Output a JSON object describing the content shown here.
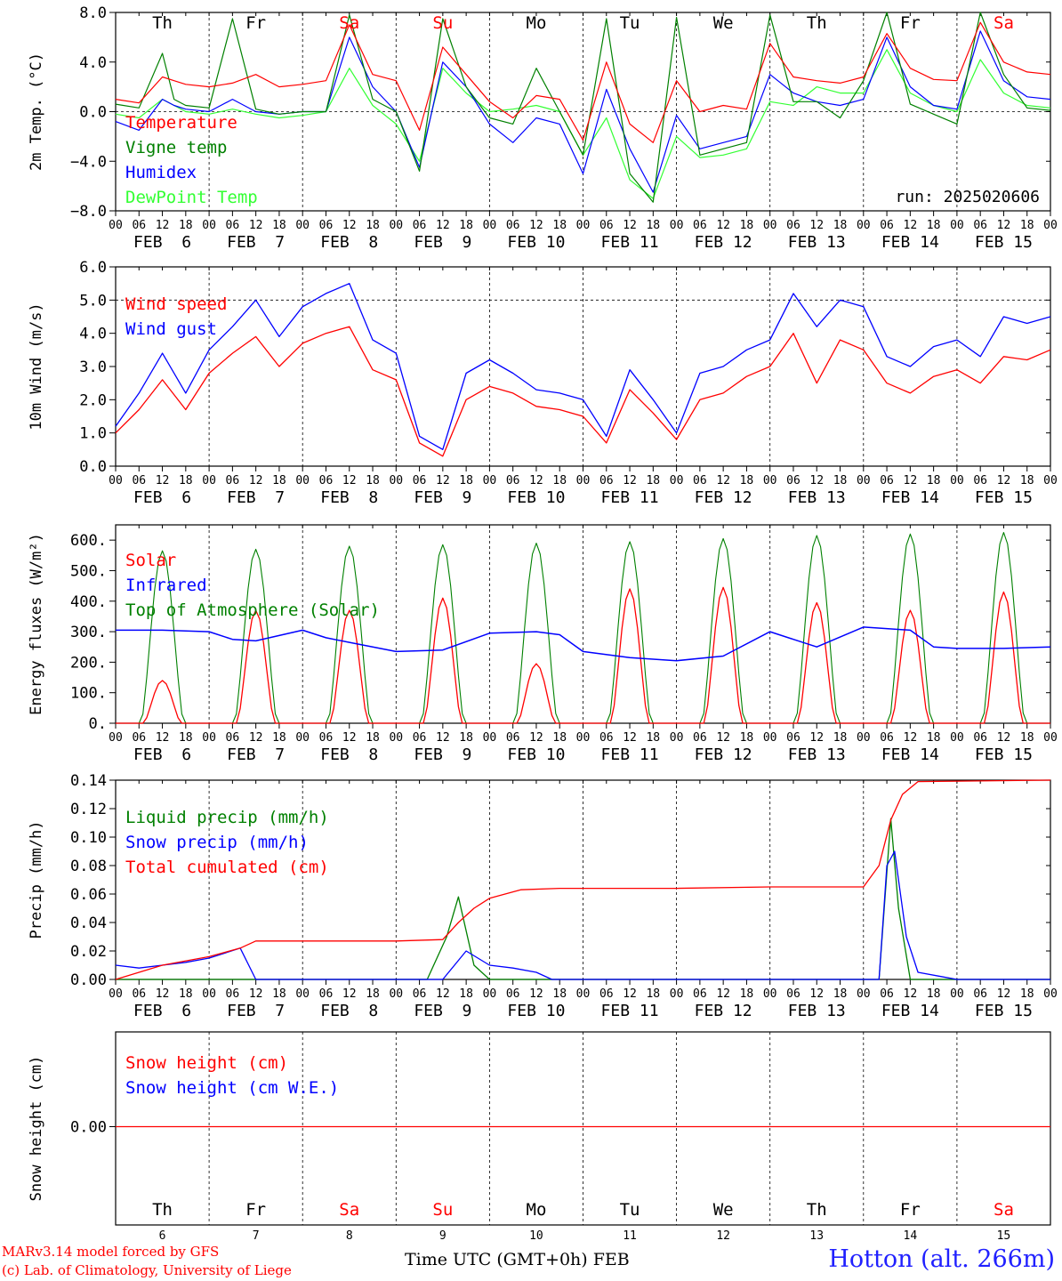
{
  "chart_data": [
    {
      "type": "line",
      "ylabel": "2m Temp. (°C)",
      "ylim": [
        -8,
        8
      ],
      "yticks": [
        "8.0",
        "4.0",
        "0.0",
        "−4.0",
        "−8.0"
      ],
      "reference_line": 0,
      "day_labels": [
        {
          "text": "Th",
          "color": "#000000"
        },
        {
          "text": "Fr",
          "color": "#000000"
        },
        {
          "text": "Sa",
          "color": "#ff0000"
        },
        {
          "text": "Su",
          "color": "#ff0000"
        },
        {
          "text": "Mo",
          "color": "#000000"
        },
        {
          "text": "Tu",
          "color": "#000000"
        },
        {
          "text": "We",
          "color": "#000000"
        },
        {
          "text": "Th",
          "color": "#000000"
        },
        {
          "text": "Fr",
          "color": "#000000"
        },
        {
          "text": "Sa",
          "color": "#ff0000"
        }
      ],
      "annotation": "run: 2025020606",
      "hour_ticks": [
        "00",
        "06",
        "12",
        "18"
      ],
      "day_names": [
        "FEB  6",
        "FEB  7",
        "FEB  8",
        "FEB  9",
        "FEB 10",
        "FEB 11",
        "FEB 12",
        "FEB 13",
        "FEB 14",
        "FEB 15"
      ],
      "x_hours": [
        0,
        6,
        12,
        15,
        18,
        24,
        30,
        36,
        42,
        48,
        54,
        60,
        66,
        72,
        78,
        84,
        90,
        96,
        102,
        108,
        114,
        120,
        126,
        132,
        138,
        144,
        150,
        156,
        162,
        168,
        174,
        180,
        186,
        192,
        198,
        204,
        210,
        216,
        222,
        228,
        234,
        240
      ],
      "series": [
        {
          "name": "Temperature",
          "color": "#ff0000",
          "values": [
            1.0,
            0.7,
            2.8,
            2.5,
            2.2,
            2.0,
            2.3,
            3.0,
            2.0,
            2.2,
            2.5,
            7.0,
            3.0,
            2.5,
            -1.5,
            5.2,
            3.0,
            0.8,
            -0.5,
            1.3,
            1.0,
            -2.3,
            4.0,
            -1.0,
            -2.5,
            2.5,
            0.0,
            0.5,
            0.2,
            5.5,
            2.8,
            2.5,
            2.3,
            2.8,
            6.3,
            3.5,
            2.6,
            2.5,
            7.2,
            4.0,
            3.2,
            3.0
          ]
        },
        {
          "name": "Vigne temp",
          "color": "#008000",
          "values": [
            0.6,
            0.3,
            4.7,
            1.0,
            0.5,
            0.3,
            7.5,
            0.2,
            -0.2,
            0.0,
            0.0,
            7.8,
            1.0,
            0.0,
            -4.8,
            7.5,
            2.0,
            -0.5,
            -1.0,
            3.5,
            0.0,
            -3.5,
            7.5,
            -5.0,
            -7.3,
            7.6,
            -3.5,
            -3.0,
            -2.5,
            7.8,
            0.8,
            0.8,
            -0.5,
            2.5,
            8.0,
            0.6,
            -0.2,
            -1.0,
            8.0,
            3.0,
            0.3,
            0.1
          ]
        },
        {
          "name": "Humidex",
          "color": "#0000ff",
          "values": [
            -0.8,
            -1.5,
            1.0,
            0.5,
            0.2,
            0.0,
            1.0,
            0.0,
            -0.2,
            0.0,
            0.0,
            6.0,
            2.0,
            0.0,
            -4.5,
            4.0,
            2.0,
            -1.0,
            -2.5,
            -0.5,
            -1.0,
            -5.0,
            1.8,
            -3.0,
            -6.5,
            -0.3,
            -3.0,
            -2.5,
            -2.0,
            3.0,
            1.5,
            0.8,
            0.5,
            1.0,
            6.0,
            2.0,
            0.5,
            0.2,
            6.5,
            2.5,
            1.2,
            1.0
          ]
        },
        {
          "name": "DewPoint Temp",
          "color": "#33ff33",
          "values": [
            -0.2,
            -0.5,
            1.0,
            0.5,
            0.0,
            -0.2,
            0.2,
            -0.2,
            -0.5,
            -0.3,
            0.0,
            3.5,
            0.5,
            -1.0,
            -4.0,
            3.5,
            1.5,
            0.0,
            0.2,
            0.5,
            0.0,
            -3.5,
            -0.5,
            -5.5,
            -7.0,
            -2.0,
            -3.7,
            -3.5,
            -3.0,
            0.8,
            0.5,
            2.0,
            1.5,
            1.5,
            5.0,
            1.5,
            0.5,
            0.0,
            4.2,
            1.5,
            0.5,
            0.3
          ]
        }
      ]
    },
    {
      "type": "line",
      "ylabel": "10m Wind (m/s)",
      "ylim": [
        0,
        6
      ],
      "yticks": [
        "6.0",
        "5.0",
        "4.0",
        "3.0",
        "2.0",
        "1.0",
        "0.0"
      ],
      "reference_line": 5,
      "hour_ticks": [
        "00",
        "06",
        "12",
        "18"
      ],
      "day_names": [
        "FEB  6",
        "FEB  7",
        "FEB  8",
        "FEB  9",
        "FEB 10",
        "FEB 11",
        "FEB 12",
        "FEB 13",
        "FEB 14",
        "FEB 15"
      ],
      "x_hours": [
        0,
        6,
        12,
        18,
        24,
        30,
        36,
        42,
        48,
        54,
        60,
        66,
        72,
        78,
        84,
        90,
        96,
        102,
        108,
        114,
        120,
        126,
        132,
        138,
        144,
        150,
        156,
        162,
        168,
        174,
        180,
        186,
        192,
        198,
        204,
        210,
        216,
        222,
        228,
        234,
        240
      ],
      "series": [
        {
          "name": "Wind speed",
          "color": "#ff0000",
          "values": [
            1.0,
            1.7,
            2.6,
            1.7,
            2.8,
            3.4,
            3.9,
            3.0,
            3.7,
            4.0,
            4.2,
            2.9,
            2.6,
            0.7,
            0.3,
            2.0,
            2.4,
            2.2,
            1.8,
            1.7,
            1.5,
            0.7,
            2.3,
            1.6,
            0.8,
            2.0,
            2.2,
            2.7,
            3.0,
            4.0,
            2.5,
            3.8,
            3.5,
            2.5,
            2.2,
            2.7,
            2.9,
            2.5,
            3.3,
            3.2,
            3.5
          ]
        },
        {
          "name": "Wind gust",
          "color": "#0000ff",
          "values": [
            1.2,
            2.2,
            3.4,
            2.2,
            3.5,
            4.2,
            5.0,
            3.9,
            4.8,
            5.2,
            5.5,
            3.8,
            3.4,
            0.9,
            0.5,
            2.8,
            3.2,
            2.8,
            2.3,
            2.2,
            2.0,
            0.9,
            2.9,
            2.0,
            1.0,
            2.8,
            3.0,
            3.5,
            3.8,
            5.2,
            4.2,
            5.0,
            4.8,
            3.3,
            3.0,
            3.6,
            3.8,
            3.3,
            4.5,
            4.3,
            4.5
          ]
        }
      ]
    },
    {
      "type": "line",
      "ylabel": "Energy fluxes (W/m²)",
      "ylim": [
        0,
        650
      ],
      "yticks": [
        "600.",
        "500.",
        "400.",
        "300.",
        "200.",
        "100.",
        "0."
      ],
      "hour_ticks": [
        "00",
        "06",
        "12",
        "18"
      ],
      "day_names": [
        "FEB  6",
        "FEB  7",
        "FEB  8",
        "FEB  9",
        "FEB 10",
        "FEB 11",
        "FEB 12",
        "FEB 13",
        "FEB 14",
        "FEB 15"
      ],
      "solar_peaks": [
        140,
        370,
        370,
        410,
        195,
        440,
        445,
        395,
        370,
        430
      ],
      "toa_peaks": [
        565,
        570,
        580,
        585,
        590,
        595,
        605,
        615,
        620,
        625
      ],
      "series": [
        {
          "name": "Solar",
          "color": "#ff0000"
        },
        {
          "name": "Infrared",
          "color": "#0000ff",
          "x_hours": [
            0,
            12,
            24,
            30,
            36,
            48,
            54,
            60,
            72,
            84,
            96,
            108,
            114,
            120,
            132,
            144,
            156,
            168,
            174,
            180,
            192,
            204,
            210,
            216,
            228,
            240
          ],
          "values": [
            305,
            305,
            300,
            275,
            270,
            305,
            280,
            265,
            235,
            240,
            295,
            300,
            290,
            235,
            215,
            205,
            220,
            300,
            275,
            250,
            315,
            305,
            250,
            245,
            245,
            250
          ]
        },
        {
          "name": "Top of Atmosphere (Solar)",
          "color": "#008000"
        }
      ]
    },
    {
      "type": "line",
      "ylabel": "Precip (mm/h)",
      "ylim": [
        0,
        0.14
      ],
      "yticks": [
        "0.14",
        "0.12",
        "0.10",
        "0.08",
        "0.06",
        "0.04",
        "0.02",
        "0.00"
      ],
      "hour_ticks": [
        "00",
        "06",
        "12",
        "18"
      ],
      "day_names": [
        "FEB  6",
        "FEB  7",
        "FEB  8",
        "FEB  9",
        "FEB 10",
        "FEB 11",
        "FEB 12",
        "FEB 13",
        "FEB 14",
        "FEB 15"
      ],
      "series": [
        {
          "name": "Liquid precip (mm/h)",
          "color": "#008000",
          "x_hours": [
            0,
            80,
            85,
            88,
            92,
            96,
            196,
            199,
            201,
            204,
            240
          ],
          "values": [
            0.0,
            0.0,
            0.03,
            0.058,
            0.01,
            0.0,
            0.0,
            0.113,
            0.05,
            0.0,
            0.0
          ]
        },
        {
          "name": "Snow precip (mm/h)",
          "color": "#0000ff",
          "x_hours": [
            0,
            6,
            12,
            18,
            24,
            32,
            36,
            40,
            84,
            90,
            96,
            102,
            108,
            112,
            120,
            190,
            196,
            198,
            200,
            203,
            206,
            212,
            216,
            240
          ],
          "values": [
            0.01,
            0.008,
            0.01,
            0.012,
            0.015,
            0.022,
            0.0,
            0.0,
            0.0,
            0.02,
            0.01,
            0.008,
            0.005,
            0.0,
            0.0,
            0.0,
            0.0,
            0.08,
            0.09,
            0.03,
            0.005,
            0.002,
            0.0,
            0.0
          ]
        },
        {
          "name": "Total cumulated (cm)",
          "color": "#ff0000",
          "x_hours": [
            0,
            12,
            24,
            32,
            36,
            48,
            60,
            72,
            84,
            88,
            92,
            96,
            104,
            114,
            120,
            144,
            168,
            192,
            196,
            199,
            202,
            206,
            240
          ],
          "values": [
            0.0,
            0.01,
            0.016,
            0.022,
            0.027,
            0.027,
            0.027,
            0.027,
            0.028,
            0.04,
            0.05,
            0.057,
            0.063,
            0.064,
            0.064,
            0.064,
            0.065,
            0.065,
            0.08,
            0.112,
            0.13,
            0.139,
            0.14
          ]
        }
      ]
    },
    {
      "type": "line",
      "ylabel": "Snow height (cm)",
      "yticks": [
        "0.00"
      ],
      "day_labels": [
        {
          "text": "Th",
          "color": "#000000"
        },
        {
          "text": "Fr",
          "color": "#000000"
        },
        {
          "text": "Sa",
          "color": "#ff0000"
        },
        {
          "text": "Su",
          "color": "#ff0000"
        },
        {
          "text": "Mo",
          "color": "#000000"
        },
        {
          "text": "Tu",
          "color": "#000000"
        },
        {
          "text": "We",
          "color": "#000000"
        },
        {
          "text": "Th",
          "color": "#000000"
        },
        {
          "text": "Fr",
          "color": "#000000"
        },
        {
          "text": "Sa",
          "color": "#ff0000"
        }
      ],
      "day_numbers": [
        "6",
        "7",
        "8",
        "9",
        "10",
        "11",
        "12",
        "13",
        "14",
        "15"
      ],
      "series": [
        {
          "name": "Snow height (cm)",
          "color": "#ff0000",
          "values": [
            0.0,
            0.0
          ]
        },
        {
          "name": "Snow height (cm W.E.)",
          "color": "#0000ff"
        }
      ]
    }
  ],
  "footer": {
    "credit_line1": "MARv3.14 model forced by GFS",
    "credit_line2": "(c) Lab. of Climatology, University of Liege",
    "xlabel": "Time UTC (GMT+0h) FEB",
    "station": "Hotton (alt. 266m)"
  }
}
